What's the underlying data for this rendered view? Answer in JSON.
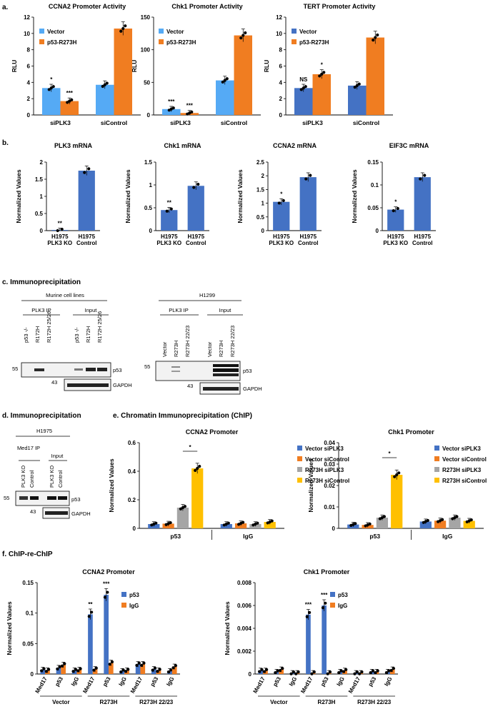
{
  "colors": {
    "blue_light": "#55aaf5",
    "blue": "#4472c4",
    "orange": "#f07d21",
    "gray": "#a5a5a5",
    "yellow": "#ffc000"
  },
  "panels": {
    "a": "a.",
    "b": "b.",
    "c": "c. Immunoprecipitation",
    "d": "d. Immunoprecipitation",
    "e": "e. Chromatin Immunoprecipitation (ChIP)",
    "f": "f. ChIP-re-ChIP"
  },
  "blots": {
    "c_left": {
      "header": "Murine cell lines",
      "groups": [
        "PLK3 IP",
        "Input"
      ],
      "lanes": [
        "p53 -/-",
        "R172H",
        "R172H 25/26",
        "p53 -/-",
        "R172H",
        "R172H 25/26"
      ],
      "mw": [
        "55",
        "43"
      ],
      "bands": [
        "p53",
        "GAPDH"
      ]
    },
    "c_right": {
      "header": "H1299",
      "groups": [
        "PLK3 IP",
        "Input"
      ],
      "lanes": [
        "Vector",
        "R273H",
        "R273H 22/23",
        "Vector",
        "R273H",
        "R273H 22/23"
      ],
      "mw": [
        "55",
        "43"
      ],
      "bands": [
        "p53",
        "GAPDH"
      ]
    },
    "d": {
      "header": "H1975",
      "groups": [
        "Med17 IP",
        "Input"
      ],
      "lanes": [
        "PLK3 KO",
        "Control",
        "PLK3 KO",
        "Control"
      ],
      "mw": [
        "55",
        "43"
      ],
      "bands": [
        "p53",
        "GAPDH"
      ]
    }
  },
  "chart_data": [
    {
      "id": "a1",
      "type": "bar",
      "title": "CCNA2 Promoter Activity",
      "ylabel": "RLU",
      "ylim": [
        0,
        12
      ],
      "yticks": [
        0,
        2,
        4,
        6,
        8,
        10,
        12
      ],
      "categories": [
        "siPLK3",
        "siControl"
      ],
      "series": [
        {
          "name": "Vector",
          "values": [
            3.3,
            3.7
          ],
          "color": "#55aaf5"
        },
        {
          "name": "p53-R273H",
          "values": [
            1.7,
            10.6
          ],
          "color": "#f07d21"
        }
      ],
      "annotations": [
        {
          "cat": 0,
          "series": 0,
          "text": "*"
        },
        {
          "cat": 0,
          "series": 1,
          "text": "***"
        }
      ]
    },
    {
      "id": "a2",
      "type": "bar",
      "title": "Chk1 Promoter Activity",
      "ylabel": "RLU",
      "ylim": [
        0,
        150
      ],
      "yticks": [
        0,
        50,
        100,
        150
      ],
      "categories": [
        "siPLK3",
        "siControl"
      ],
      "series": [
        {
          "name": "Vector",
          "values": [
            9,
            53
          ],
          "color": "#55aaf5"
        },
        {
          "name": "p53-R273H",
          "values": [
            3,
            122
          ],
          "color": "#f07d21"
        }
      ],
      "annotations": [
        {
          "cat": 0,
          "series": 0,
          "text": "***"
        },
        {
          "cat": 0,
          "series": 1,
          "text": "***"
        }
      ]
    },
    {
      "id": "a3",
      "type": "bar",
      "title": "TERT Promoter Activity",
      "ylabel": "RLU",
      "ylim": [
        0,
        12
      ],
      "yticks": [
        0,
        2,
        4,
        6,
        8,
        10,
        12
      ],
      "categories": [
        "siPLK3",
        "siControl"
      ],
      "series": [
        {
          "name": "Vector",
          "values": [
            3.3,
            3.6
          ],
          "color": "#4472c4"
        },
        {
          "name": "p53-R273H",
          "values": [
            5.0,
            9.5
          ],
          "color": "#f07d21"
        }
      ],
      "annotations": [
        {
          "cat": 0,
          "series": 0,
          "text": "NS"
        },
        {
          "cat": 0,
          "series": 1,
          "text": "*"
        }
      ]
    },
    {
      "id": "b1",
      "type": "bar",
      "title": "PLK3 mRNA",
      "ylabel": "Normalized Values",
      "ylim": [
        0,
        2.0
      ],
      "yticks": [
        0,
        0.5,
        1.0,
        1.5,
        2.0
      ],
      "categories": [
        "H1975 PLK3 KO",
        "H1975 Control"
      ],
      "series": [
        {
          "name": "",
          "values": [
            0.02,
            1.75
          ],
          "color": "#4472c4"
        }
      ],
      "annotations": [
        {
          "cat": 0,
          "series": 0,
          "text": "**"
        }
      ]
    },
    {
      "id": "b2",
      "type": "bar",
      "title": "Chk1 mRNA",
      "ylabel": "Normalized Values",
      "ylim": [
        0,
        1.5
      ],
      "yticks": [
        0,
        0.5,
        1.0,
        1.5
      ],
      "categories": [
        "H1975 PLK3 KO",
        "H1975 Control"
      ],
      "series": [
        {
          "name": "",
          "values": [
            0.45,
            0.98
          ],
          "color": "#4472c4"
        }
      ],
      "annotations": [
        {
          "cat": 0,
          "series": 0,
          "text": "**"
        }
      ]
    },
    {
      "id": "b3",
      "type": "bar",
      "title": "CCNA2 mRNA",
      "ylabel": "Normalized Values",
      "ylim": [
        0,
        2.5
      ],
      "yticks": [
        0,
        0.5,
        1.0,
        1.5,
        2.0,
        2.5
      ],
      "categories": [
        "H1975 PLK3 KO",
        "H1975 Control"
      ],
      "series": [
        {
          "name": "",
          "values": [
            1.05,
            1.95
          ],
          "color": "#4472c4"
        }
      ],
      "annotations": [
        {
          "cat": 0,
          "series": 0,
          "text": "*"
        }
      ]
    },
    {
      "id": "b4",
      "type": "bar",
      "title": "EIF3C mRNA",
      "ylabel": "Normalized Values",
      "ylim": [
        0,
        0.15
      ],
      "yticks": [
        0,
        0.05,
        0.1,
        0.15
      ],
      "categories": [
        "H1975 PLK3 KO",
        "H1975 Control"
      ],
      "series": [
        {
          "name": "",
          "values": [
            0.046,
            0.117
          ],
          "color": "#4472c4"
        }
      ],
      "annotations": [
        {
          "cat": 0,
          "series": 0,
          "text": "*"
        }
      ]
    },
    {
      "id": "e1",
      "type": "bar",
      "title": "CCNA2 Promoter",
      "ylabel": "Normalized Values",
      "ylim": [
        0,
        0.6
      ],
      "yticks": [
        0,
        0.2,
        0.4,
        0.6
      ],
      "categories": [
        "p53",
        "IgG"
      ],
      "series": [
        {
          "name": "Vector siPLK3",
          "values": [
            0.03,
            0.03
          ],
          "color": "#4472c4"
        },
        {
          "name": "Vector siControl",
          "values": [
            0.033,
            0.035
          ],
          "color": "#f07d21"
        },
        {
          "name": "R273H siPLK3",
          "values": [
            0.145,
            0.03
          ],
          "color": "#a5a5a5"
        },
        {
          "name": "R273H siControl",
          "values": [
            0.42,
            0.045
          ],
          "color": "#ffc000"
        }
      ],
      "bracket": {
        "cat": 0,
        "from": 2,
        "to": 3,
        "text": "*"
      }
    },
    {
      "id": "e2",
      "type": "bar",
      "title": "Chk1 Promoter",
      "ylabel": "Normalized Values",
      "ylim": [
        0,
        0.04
      ],
      "yticks": [
        0,
        0.01,
        0.02,
        0.03,
        0.04
      ],
      "categories": [
        "p53",
        "IgG"
      ],
      "series": [
        {
          "name": "Vector siPLK3",
          "values": [
            0.0018,
            0.0032
          ],
          "color": "#4472c4"
        },
        {
          "name": "Vector siControl",
          "values": [
            0.0016,
            0.0036
          ],
          "color": "#f07d21"
        },
        {
          "name": "R273H siPLK3",
          "values": [
            0.005,
            0.005
          ],
          "color": "#a5a5a5"
        },
        {
          "name": "R273H siControl",
          "values": [
            0.025,
            0.0035
          ],
          "color": "#ffc000"
        }
      ],
      "bracket": {
        "cat": 0,
        "from": 2,
        "to": 3,
        "text": "*"
      }
    },
    {
      "id": "f1",
      "type": "bar",
      "title": "CCNA2 Promoter",
      "ylabel": "Normalized Values",
      "ylim": [
        0,
        0.15
      ],
      "yticks": [
        0,
        0.05,
        0.1,
        0.15
      ],
      "categories": [
        "Med17",
        "p53",
        "IgG",
        "Med17",
        "p53",
        "IgG",
        "Med17",
        "p53",
        "IgG"
      ],
      "groups": [
        "Vector",
        "R273H",
        "R273H 22/23"
      ],
      "series": [
        {
          "name": "p53",
          "values": [
            0.007,
            0.01,
            0.006,
            0.098,
            0.13,
            0.005,
            0.016,
            0.008,
            0.005
          ],
          "color": "#4472c4"
        },
        {
          "name": "IgG",
          "values": [
            0.006,
            0.015,
            0.007,
            0.008,
            0.018,
            0.006,
            0.016,
            0.006,
            0.012
          ],
          "color": "#f07d21"
        }
      ],
      "annotations": [
        {
          "cat": 3,
          "series": 0,
          "text": "**"
        },
        {
          "cat": 4,
          "series": 0,
          "text": "***"
        }
      ]
    },
    {
      "id": "f2",
      "type": "bar",
      "title": "Chk1 Promoter",
      "ylabel": "Normalized Values",
      "ylim": [
        0,
        0.008
      ],
      "yticks": [
        0,
        0.002,
        0.004,
        0.006,
        0.008
      ],
      "categories": [
        "Med17",
        "p53",
        "IgG",
        "Med17",
        "p53",
        "IgG",
        "Med17",
        "p53",
        "IgG"
      ],
      "groups": [
        "Vector",
        "R273H",
        "R273H 22/23"
      ],
      "series": [
        {
          "name": "p53",
          "values": [
            0.0003,
            0.0002,
            0.0001,
            0.0052,
            0.006,
            0.0002,
            0.0001,
            0.0002,
            0.0002
          ],
          "color": "#4472c4"
        },
        {
          "name": "IgG",
          "values": [
            0.0003,
            0.0004,
            0.0001,
            0.0001,
            0.0001,
            0.0003,
            0.0001,
            0.0002,
            0.0004
          ],
          "color": "#f07d21"
        }
      ],
      "annotations": [
        {
          "cat": 3,
          "series": 0,
          "text": "***"
        },
        {
          "cat": 4,
          "series": 0,
          "text": "***"
        }
      ]
    }
  ]
}
